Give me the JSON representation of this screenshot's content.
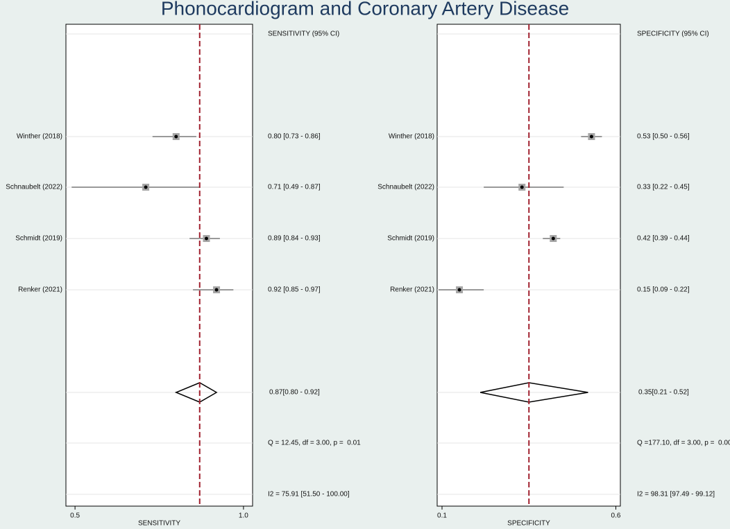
{
  "title": "Phonocardiogram and Coronary Artery Disease",
  "chart_data": [
    {
      "type": "forest",
      "header": "SENSITIVITY (95% CI)",
      "xlabel": "SENSITIVITY",
      "xlim": [
        0.473,
        1.027
      ],
      "xticks": [
        0.5,
        {
          "value": 1,
          "label": "1.0"
        }
      ],
      "studies": [
        "Winther (2018)",
        "Schnaubelt (2022)",
        "Schmidt (2019)",
        "Renker (2021)"
      ],
      "values": [
        0.8,
        0.71,
        0.89,
        0.92
      ],
      "lower": [
        0.73,
        0.49,
        0.84,
        0.85
      ],
      "upper": [
        0.86,
        0.87,
        0.93,
        0.97
      ],
      "value_labels": [
        "0.80 [0.73 - 0.86]",
        "0.71 [0.49 - 0.87]",
        "0.89 [0.84 - 0.93]",
        "0.92 [0.85 - 0.97]"
      ],
      "pooled": {
        "value": 0.87,
        "lower": 0.8,
        "upper": 0.92,
        "label": "0.87[0.80 - 0.92]"
      },
      "heterogeneity": "Q = 12.45, df = 3.00, p =  0.01",
      "i2": "I2 = 75.91 [51.50 - 100.00]",
      "marker_color": "#a6a6a6",
      "ref_line_color": "#a0202e"
    },
    {
      "type": "forest",
      "header": "SPECIFICITY (95% CI)",
      "xlabel": "SPECIFICITY",
      "xlim": [
        0.086,
        0.613
      ],
      "xticks": [
        0.1,
        0.6
      ],
      "studies": [
        "Winther (2018)",
        "Schnaubelt (2022)",
        "Schmidt (2019)",
        "Renker (2021)"
      ],
      "values": [
        0.53,
        0.33,
        0.42,
        0.15
      ],
      "lower": [
        0.5,
        0.22,
        0.39,
        0.09
      ],
      "upper": [
        0.56,
        0.45,
        0.44,
        0.22
      ],
      "value_labels": [
        "0.53 [0.50 - 0.56]",
        "0.33 [0.22 - 0.45]",
        "0.42 [0.39 - 0.44]",
        "0.15 [0.09 - 0.22]"
      ],
      "pooled": {
        "value": 0.35,
        "lower": 0.21,
        "upper": 0.52,
        "label": "0.35[0.21 - 0.52]"
      },
      "heterogeneity": "Q =177.10, df = 3.00, p =  0.00",
      "i2": "I2 = 98.31 [97.49 - 99.12]",
      "marker_color": "#a6a6a6",
      "ref_line_color": "#a0202e"
    }
  ]
}
